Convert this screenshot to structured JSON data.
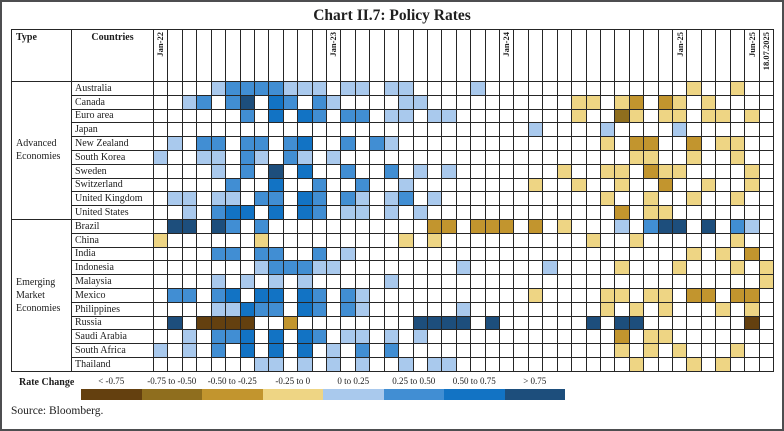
{
  "title": "Chart II.7: Policy Rates",
  "legend_title": "Rate Change",
  "source": "Source: Bloomberg.",
  "chart_data": {
    "type": "heatmap",
    "title": "Chart II.7: Policy Rates",
    "x_axis": "Monthly columns from Jan-2022 to Jun-2025 plus 18.07.2025",
    "column_count": 43,
    "column_labels": {
      "0": "Jan-22",
      "12": "Jan-23",
      "24": "Jan-24",
      "36": "Jan-25",
      "41": "Jun-25",
      "42": "18.07.2025"
    },
    "col_headers": {
      "type": "Type",
      "countries": "Countries"
    },
    "bin_codes": {
      ".": "no change",
      "1": "< -0.75",
      "2": "-0.75 to -0.50",
      "3": "-0.50 to -0.25",
      "4": "-0.25 to 0",
      "5": "0 to 0.25",
      "6": "0.25 to 0.50",
      "7": "0.50 to 0.75",
      "8": "> 0.75"
    },
    "colors": {
      ".": "#ffffff",
      "1": "#64400f",
      "2": "#8f6e1e",
      "3": "#c2952e",
      "4": "#eed584",
      "5": "#a9c9ed",
      "6": "#418ed3",
      "7": "#1273c4",
      "8": "#1d4e7c"
    },
    "groups": [
      {
        "label": "Advanced Economies",
        "span": 10
      },
      {
        "label": "Emerging Market Economies",
        "span": 11
      }
    ],
    "rows": [
      {
        "group": "Advanced Economies",
        "country": "Australia",
        "cells": "....56666555.55.55....5..............4..4.."
      },
      {
        "group": "Advanced Economies",
        "country": "Canada",
        "cells": "..56.68.76.65....55..........44.43.34.4...."
      },
      {
        "group": "Advanced Economies",
        "country": "Euro area",
        "cells": "......6.7.76.66.55.55........4..24.44.44.4."
      },
      {
        "group": "Advanced Economies",
        "country": "Japan",
        "cells": "..........................5....5....5......"
      },
      {
        "group": "Advanced Economies",
        "country": "New Zealand",
        "cells": ".5.66.66.67..6.65..............4.33..3.44.."
      },
      {
        "group": "Advanced Economies",
        "country": "South Korea",
        "cells": "5..55.65.65.5....................44..4..4.."
      },
      {
        "group": "Advanced Economies",
        "country": "Sweden",
        "cells": "....5.6.8.7..6..6.5.5.......4..44.344....4."
      },
      {
        "group": "Advanced Economies",
        "country": "Switzerland",
        "cells": ".....6..7..6..6..5........4..4..4..3..4..4."
      },
      {
        "group": "Advanced Economies",
        "country": "United Kingdom",
        "cells": ".55.55.66.76.65.56.5...........4..4..4..4.."
      },
      {
        "group": "Advanced Economies",
        "country": "United States",
        "cells": "..5.677.7.76.55.5.5.............3.44......."
      },
      {
        "group": "Emerging Market Economies",
        "country": "Brazil",
        "cells": ".88.86.6...........33.333.3.4...5.688.8.65."
      },
      {
        "group": "Emerging Market Economies",
        "country": "China",
        "cells": "4......4.........4.4..........4..4......4.."
      },
      {
        "group": "Emerging Market Economies",
        "country": "India",
        "cells": "....66.66..6.5.......................4.4.3."
      },
      {
        "group": "Emerging Market Economies",
        "country": "Indonesia",
        "cells": ".......566655........5.....5....4...4...4.4"
      },
      {
        "group": "Emerging Market Economies",
        "country": "Malaysia",
        "cells": "....5.5.5.5.....5.........................4"
      },
      {
        "group": "Emerging Market Economies",
        "country": "Mexico",
        "cells": ".66.67.77.76.65...........4....44.44.33.33."
      },
      {
        "group": "Emerging Market Economies",
        "country": "Philippines",
        "cells": "....55766.76.65......5.........4.4.4...4.4."
      },
      {
        "group": "Emerging Market Economies",
        "country": "Russia",
        "cells": ".8.1111..3........8888.8......8.88.......1."
      },
      {
        "group": "Emerging Market Economies",
        "country": "Saudi Arabia",
        "cells": "..5.667.7.76.55.5.5.............3.44......."
      },
      {
        "group": "Emerging Market Economies",
        "country": "South Africa",
        "cells": "5.5.6.7.7.7.5.6.6...............4.4.4...4.."
      },
      {
        "group": "Emerging Market Economies",
        "country": "Thailand",
        "cells": ".......55.5.5.5..5.55............4...4.4..."
      }
    ],
    "legend": {
      "title": "Rate Change",
      "position": "bottom",
      "bins": [
        {
          "label": "< -0.75",
          "color": "#64400f"
        },
        {
          "label": "-0.75 to -0.50",
          "color": "#8f6e1e"
        },
        {
          "label": "-0.50 to -0.25",
          "color": "#c2952e"
        },
        {
          "label": "-0.25 to 0",
          "color": "#eed584"
        },
        {
          "label": "0 to 0.25",
          "color": "#a9c9ed"
        },
        {
          "label": "0.25 to 0.50",
          "color": "#418ed3"
        },
        {
          "label": "0.50 to 0.75",
          "color": "#1273c4"
        },
        {
          "label": "> 0.75",
          "color": "#1d4e7c"
        }
      ]
    }
  }
}
